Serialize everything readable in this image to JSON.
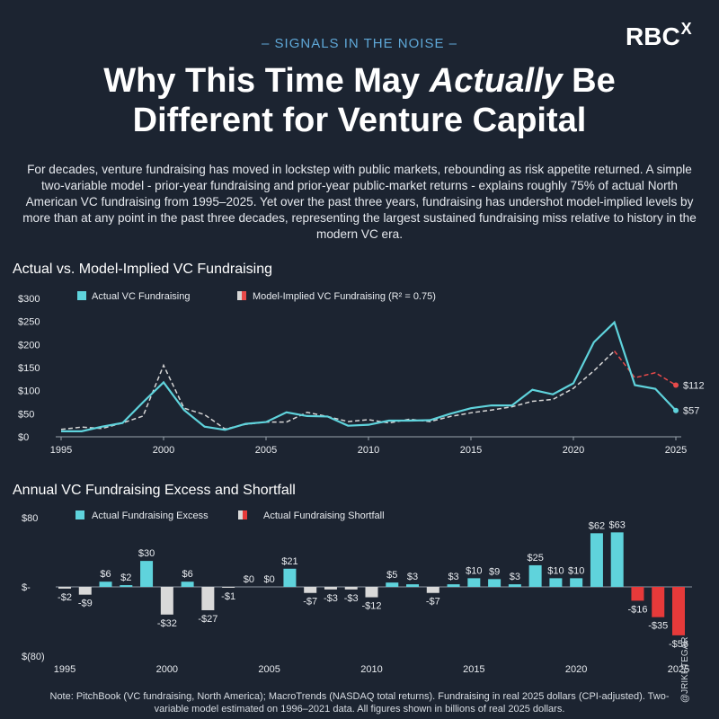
{
  "header": {
    "kicker": "– SIGNALS IN THE NOISE –",
    "logo_main": "RBC",
    "logo_sup": "X",
    "title_line1_pre": "Why This Time May ",
    "title_line1_em": "Actually",
    "title_line1_post": " Be",
    "title_line2": "Different for Venture Capital",
    "intro": "For decades, venture fundraising has moved in lockstep with public markets, rebounding as risk appetite returned. A simple two-variable model - prior-year fundraising and prior-year public-market returns - explains roughly 75% of actual North American VC fundraising from 1995–2025. Yet over the past three years, fundraising has undershot model-implied levels by more than at any point in the past three decades, representing the largest sustained fundraising miss relative to history in the modern VC era."
  },
  "colors": {
    "background": "#1c2431",
    "actual": "#5fd3dc",
    "model": "#d6d6d6",
    "forecast": "#e84a4a",
    "negative": "#d9d9d9",
    "shortfall": "#e63a3a",
    "axis_text": "#e8ebef"
  },
  "chart_data": [
    {
      "type": "line",
      "title": "Actual vs. Model-Implied VC Fundraising",
      "legend": [
        "Actual VC Fundraising",
        "Model-Implied VC Fundraising (R² = 0.75)"
      ],
      "x": [
        1995,
        1996,
        1997,
        1998,
        1999,
        2000,
        2001,
        2002,
        2003,
        2004,
        2005,
        2006,
        2007,
        2008,
        2009,
        2010,
        2011,
        2012,
        2013,
        2014,
        2015,
        2016,
        2017,
        2018,
        2019,
        2020,
        2021,
        2022,
        2023,
        2024,
        2025
      ],
      "series": [
        {
          "name": "Actual VC Fundraising",
          "values": [
            12,
            12,
            22,
            30,
            75,
            118,
            58,
            22,
            15,
            28,
            32,
            53,
            45,
            44,
            24,
            26,
            35,
            35,
            36,
            50,
            62,
            68,
            68,
            102,
            92,
            116,
            205,
            248,
            112,
            104,
            57
          ]
        },
        {
          "name": "Model-Implied VC Fundraising (R² = 0.75)",
          "values": [
            16,
            21,
            18,
            30,
            45,
            155,
            62,
            48,
            17,
            27,
            32,
            32,
            53,
            44,
            33,
            37,
            30,
            38,
            33,
            44,
            52,
            58,
            65,
            77,
            81,
            105,
            143,
            186,
            128,
            139,
            112
          ]
        }
      ],
      "end_labels": {
        "actual": "$57",
        "model": "$112"
      },
      "yticks": [
        "$0",
        "$50",
        "$100",
        "$150",
        "$200",
        "$250",
        "$300"
      ],
      "ytick_values": [
        0,
        50,
        100,
        150,
        200,
        250,
        300
      ],
      "xticks": [
        1995,
        2000,
        2005,
        2010,
        2015,
        2020,
        2025
      ],
      "ylim": [
        0,
        300
      ],
      "xlim": [
        1995,
        2025
      ]
    },
    {
      "type": "bar",
      "title": "Annual VC Fundraising Excess and Shortfall",
      "legend": [
        "Actual Fundraising Excess",
        "Actual Fundraising Shortfall"
      ],
      "x": [
        1995,
        1996,
        1997,
        1998,
        1999,
        2000,
        2001,
        2002,
        2003,
        2004,
        2005,
        2006,
        2007,
        2008,
        2009,
        2010,
        2011,
        2012,
        2013,
        2014,
        2015,
        2016,
        2017,
        2018,
        2019,
        2020,
        2021,
        2022,
        2023,
        2024,
        2025
      ],
      "values": [
        -2,
        -9,
        6,
        2,
        30,
        -32,
        6,
        -27,
        -1,
        0,
        0,
        21,
        -7,
        -3,
        -3,
        -12,
        5,
        3,
        -7,
        3,
        10,
        9,
        3,
        25,
        10,
        10,
        62,
        63,
        -16,
        -35,
        -56
      ],
      "labels": [
        "-$2",
        "-$9",
        "$6",
        "$2",
        "$30",
        "-$32",
        "$6",
        "-$27",
        "-$1",
        "$0",
        "$0",
        "$21",
        "-$7",
        "-$3",
        "-$3",
        "-$12",
        "$5",
        "$3",
        "-$7",
        "$3",
        "$10",
        "$9",
        "$3",
        "$25",
        "$10",
        "$10",
        "$62",
        "$63",
        "-$16",
        "-$35",
        "-$56"
      ],
      "highlight_years": [
        2023,
        2024,
        2025
      ],
      "yticks": [
        "$80",
        "$-",
        "$(80)"
      ],
      "ytick_values": [
        80,
        0,
        -80
      ],
      "xticks": [
        1995,
        2000,
        2005,
        2010,
        2015,
        2020,
        2025
      ],
      "ylim": [
        -80,
        80
      ]
    }
  ],
  "footer": {
    "note": "Note: PitchBook (VC fundraising, North America); MacroTrends (NASDAQ total returns). Fundraising in real 2025 dollars (CPI-adjusted). Two-variable model estimated on 1996–2021 data. All figures shown in billions of real 2025 dollars.",
    "handle": "@JRIKHTEGAR"
  }
}
